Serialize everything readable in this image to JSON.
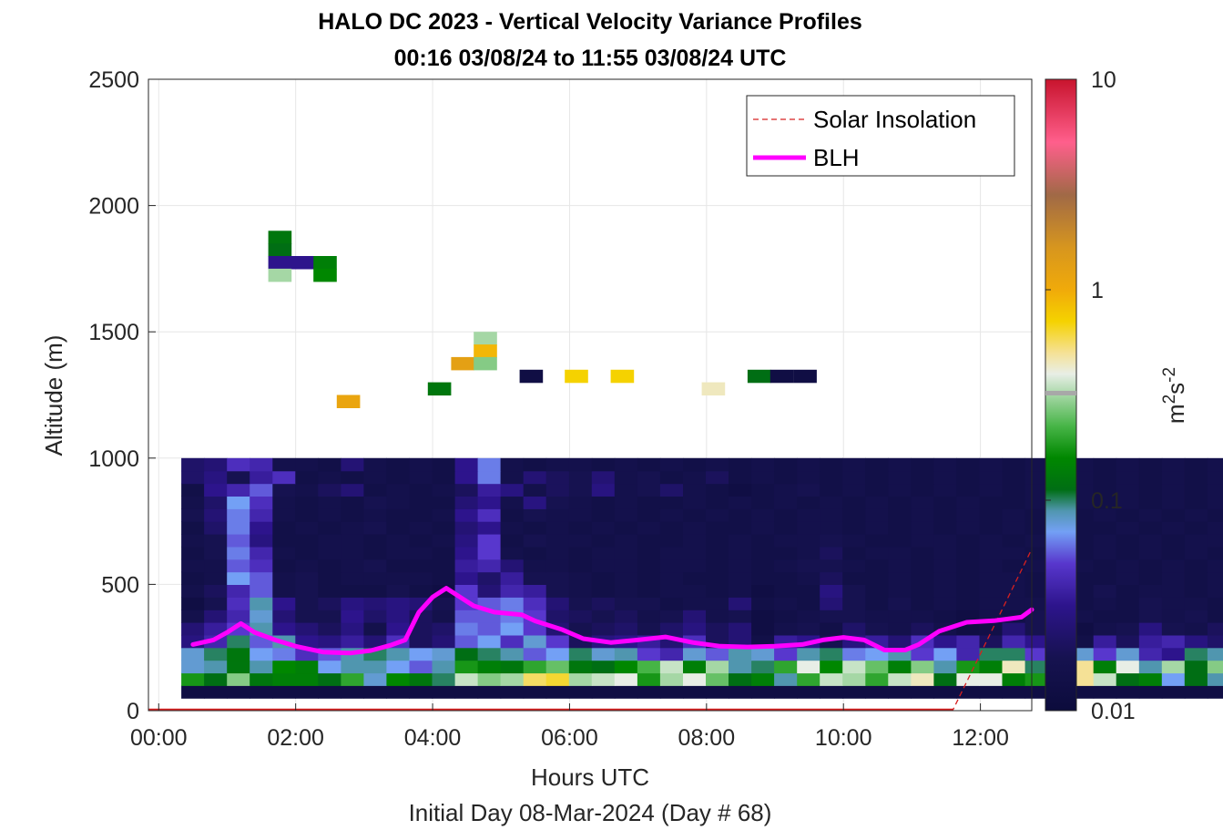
{
  "chart_data": {
    "type": "heatmap",
    "title": "HALO DC 2023 - Vertical Velocity Variance Profiles",
    "subtitle": "00:16 03/08/24 to 11:55 03/08/24  UTC",
    "xlabel": "Hours UTC",
    "xlabel2": "Initial Day 08-Mar-2024 (Day # 68)",
    "ylabel": "Altitude (m)",
    "xlim": [
      -0.15,
      12.75
    ],
    "ylim": [
      0,
      2500
    ],
    "x_ticks": [
      0,
      2,
      4,
      6,
      8,
      10,
      12
    ],
    "x_tick_labels": [
      "00:00",
      "02:00",
      "04:00",
      "06:00",
      "08:00",
      "10:00",
      "12:00"
    ],
    "y_ticks": [
      0,
      500,
      1000,
      1500,
      2000,
      2500
    ],
    "y_tick_labels": [
      "0",
      "500",
      "1000",
      "1500",
      "2000",
      "2500"
    ],
    "grid": true,
    "colorbar": {
      "label_base": "m",
      "label_sup1": "2",
      "label_mid": "s",
      "label_sup2": "-2",
      "scale": "log",
      "range": [
        0.01,
        10
      ],
      "ticks": [
        0.01,
        0.1,
        1,
        10
      ],
      "tick_labels": [
        "0.01",
        "0.1",
        "1",
        "10"
      ]
    },
    "legend": {
      "placement": "top-right",
      "entries": [
        {
          "label": "Solar Insolation",
          "color": "#d62020",
          "style": "dashed"
        },
        {
          "label": "BLH",
          "color": "#ff00ff",
          "style": "solid"
        }
      ]
    },
    "grid_cells": {
      "x_start": 0.33,
      "x_step": 0.333,
      "y_start": 50,
      "y_step": 50,
      "unit": "log10 of variance (m2 s-2)",
      "rows": [
        "-1.9,-1.9,-1.9,-1.9,-1.9,-1.9,-1.9,-1.9,-1.9,-1.9,-1.9,-1.9,-1.9,-1.9,-1.9,-1.9,-1.9,-1.9,-1.9,-1.9,-1.9,-1.9,-1.9,-1.9,-1.9,-1.9,-1.9,-1.9,-1.9,-1.9,-1.9,-1.9,-1.9,-1.9,-1.9,-1.9,-1.9,-1.9,-1.9,-1.9,-1.9,-1.9,-1.9,-1.9,-1.9,-1.9,-1.9,-1.9,-1.9,-1.9",
        "-0.75,-0.95,-0.55,-0.9,-0.85,-0.85,-0.95,-0.7,-1.1,-0.8,-0.9,-1.0,-0.45,-0.55,-0.5,-0.25,-0.2,-0.5,-0.45,-0.4,-0.75,-0.5,-0.4,-0.6,-0.95,-0.85,-1.05,-0.7,-0.45,-0.5,-0.7,-0.45,-0.35,-0.95,-0.4,-0.4,-0.85,-0.75,-0.6,-0.3,-0.45,-0.95,-0.85,-1.15,-0.95,-1.05,-0.8,-0.75,-0.55,-0.25",
        "-1.1,-1.05,-0.9,-1.05,-0.8,-0.85,-1.15,-1.05,-1.05,-1.15,-1.25,-1.05,-0.75,-0.85,-0.9,-0.7,-0.6,-0.9,-0.95,-0.8,-0.65,-0.45,-0.85,-0.5,-1.05,-1.0,-0.7,-0.4,-0.8,-0.45,-0.6,-0.85,-0.55,-1.05,-0.75,-0.85,-0.35,-1.0,-0.45,-0.3,-0.85,-0.4,-1.05,-0.5,-0.95,-0.55,-0.9,-0.75,-0.45,-0.65",
        "-1.1,-1.0,-0.9,-1.15,-1.2,-1.35,-1.25,-1.05,-1.0,-1.05,-1.15,-1.1,-0.95,-1.0,-1.05,-1.25,-1.15,-1.0,-1.1,-1.05,-1.3,-1.4,-1.1,-1.25,-1.05,-1.1,-1.3,-1.05,-1.0,-1.2,-1.15,-1.05,-1.3,-1.15,-1.4,-1.0,-1.0,-1.3,-1.15,-1.1,-1.3,-1.1,-1.4,-1.5,-1.0,-1.05,-1.35,-1.35,-1.2,-1.45",
        "-1.55,-1.4,-1.0,-1.25,-1.05,-1.5,-1.55,-1.45,-1.6,-1.35,-1.7,-1.6,-1.25,-1.15,-1.35,-1.1,-1.3,-1.7,-1.55,-1.5,-1.45,-1.6,-1.35,-1.7,-1.6,-1.85,-1.45,-1.5,-1.75,-1.55,-1.45,-1.6,-1.35,-1.5,-1.4,-1.7,-1.4,-1.5,-1.7,-1.85,-1.45,-1.7,-1.45,-1.4,-1.55,-1.65,-1.7,-1.45,-1.75,-1.6",
        "-1.6,-1.45,-1.3,-1.05,-1.5,-1.6,-1.7,-1.55,-1.8,-1.5,-1.7,-1.65,-1.2,-1.25,-1.15,-1.3,-1.6,-1.75,-1.7,-1.65,-1.75,-1.65,-1.55,-1.7,-1.6,-1.9,-1.8,-1.75,-1.85,-1.65,-1.75,-1.8,-1.7,-1.8,-1.9,-1.85,-1.6,-1.75,-1.85,-1.9,-1.8,-1.75,-1.55,-1.75,-1.8,-1.7,-1.85,-1.75,-1.9,-1.6",
        "-1.8,-1.6,-1.4,-1.1,-1.6,-1.75,-1.75,-1.5,-1.65,-1.55,-1.7,-1.8,-1.25,-1.25,-1.2,-1.3,-1.65,-1.7,-1.75,-1.7,-1.8,-1.75,-1.6,-1.8,-1.75,-1.9,-1.85,-1.8,-1.75,-1.75,-1.8,-1.8,-1.8,-1.85,-1.9,-1.8,-1.85,-1.75,-1.85,-1.8,-1.85,-1.85,-1.75,-1.8,-1.75,-1.85,-1.8,-1.8,-1.85,-1.9",
        "-1.9,-1.75,-1.35,-1.05,-1.5,-1.75,-1.7,-1.55,-1.6,-1.55,-1.6,-1.75,-1.3,-1.25,-1.2,-1.35,-1.6,-1.75,-1.7,-1.75,-1.75,-1.85,-1.8,-1.8,-1.6,-1.85,-1.8,-1.85,-1.6,-1.75,-1.85,-1.75,-1.85,-1.8,-1.85,-1.8,-1.8,-1.8,-1.8,-1.85,-1.8,-1.85,-1.75,-1.8,-1.8,-1.85,-1.8,-1.75,-1.85,-1.8",
        "-1.8,-1.7,-1.4,-1.25,-1.8,-1.75,-1.85,-1.85,-1.85,-1.75,-1.85,-1.9,-1.3,-1.6,-1.4,-1.45,-1.75,-1.8,-1.85,-1.8,-1.85,-1.8,-1.8,-1.85,-1.8,-1.9,-1.85,-1.85,-1.55,-1.75,-1.85,-1.8,-1.85,-1.8,-1.85,-1.8,-1.8,-1.85,-1.8,-1.85,-1.75,-1.85,-1.8,-1.8,-1.85,-1.8,-1.85,-1.8,-1.85,-1.8",
        "-1.85,-1.8,-1.15,-1.25,-1.8,-1.75,-1.85,-1.8,-1.8,-1.8,-1.8,-1.85,-1.5,-1.65,-1.45,-1.75,-1.75,-1.8,-1.85,-1.8,-1.85,-1.8,-1.85,-1.85,-1.8,-1.85,-1.85,-1.8,-1.7,-1.85,-1.85,-1.8,-1.85,-1.8,-1.85,-1.8,-1.8,-1.85,-1.8,-1.85,-1.85,-1.8,-1.85,-1.8,-1.85,-1.8,-1.85,-1.8,-1.85,-1.8",
        "-1.8,-1.8,-1.25,-1.35,-1.85,-1.8,-1.85,-1.8,-1.75,-1.85,-1.85,-1.85,-1.45,-1.4,-1.6,-1.8,-1.8,-1.85,-1.8,-1.8,-1.85,-1.8,-1.8,-1.85,-1.8,-1.85,-1.8,-1.75,-1.75,-1.8,-1.85,-1.8,-1.85,-1.8,-1.85,-1.8,-1.85,-1.8,-1.85,-1.8,-1.85,-1.8,-1.85,-1.8,-1.85,-1.8,-1.85,-1.8,-1.85,-1.8",
        "-1.85,-1.75,-1.2,-1.4,-1.8,-1.85,-1.8,-1.8,-1.85,-1.8,-1.8,-1.85,-1.5,-1.3,-1.8,-1.85,-1.8,-1.85,-1.8,-1.8,-1.85,-1.8,-1.8,-1.85,-1.8,-1.85,-1.85,-1.8,-1.7,-1.85,-1.8,-1.8,-1.85,-1.8,-1.85,-1.8,-1.8,-1.85,-1.8,-1.85,-1.8,-1.85,-1.8,-1.85,-1.8,-1.85,-1.8,-1.85,-1.8,-1.85",
        "-1.8,-1.75,-1.25,-1.55,-1.85,-1.85,-1.8,-1.8,-1.85,-1.8,-1.85,-1.8,-1.55,-1.3,-1.85,-1.75,-1.8,-1.8,-1.85,-1.8,-1.85,-1.85,-1.8,-1.85,-1.8,-1.85,-1.8,-1.8,-1.75,-1.8,-1.85,-1.85,-1.8,-1.8,-1.85,-1.8,-1.85,-1.8,-1.8,-1.85,-1.8,-1.85,-1.8,-1.85,-1.8,-1.8,-1.85,-1.8,-1.85,-1.8",
        "-1.85,-1.65,-1.2,-1.5,-1.85,-1.8,-1.85,-1.8,-1.75,-1.85,-1.8,-1.85,-1.6,-1.5,-1.8,-1.85,-1.8,-1.85,-1.8,-1.85,-1.8,-1.85,-1.8,-1.85,-1.85,-1.8,-1.85,-1.8,-1.8,-1.85,-1.8,-1.85,-1.8,-1.85,-1.8,-1.85,-1.8,-1.85,-1.8,-1.85,-1.85,-1.8,-1.85,-1.8,-1.85,-1.8,-1.85,-1.8,-1.8,-1.85",
        "-1.75,-1.6,-1.2,-1.4,-1.8,-1.85,-1.8,-1.85,-1.8,-1.85,-1.85,-1.8,-1.5,-1.35,-1.85,-1.75,-1.8,-1.8,-1.85,-1.8,-1.85,-1.8,-1.85,-1.8,-1.85,-1.8,-1.85,-1.8,-1.8,-1.85,-1.8,-1.85,-1.8,-1.85,-1.8,-1.85,-1.8,-1.85,-1.8,-1.85,-1.8,-1.85,-1.8,-1.85,-1.8,-1.85,-1.8,-1.85,-1.8,-1.85",
        "-1.8,-1.65,-1.15,-1.35,-1.8,-1.85,-1.8,-1.85,-1.75,-1.8,-1.85,-1.85,-1.6,-1.5,-1.8,-1.55,-1.75,-1.8,-1.85,-1.8,-1.85,-1.85,-1.8,-1.85,-1.8,-1.85,-1.8,-1.85,-1.8,-1.85,-1.8,-1.85,-1.8,-1.85,-1.8,-1.85,-1.85,-1.8,-1.85,-1.8,-1.85,-1.8,-1.85,-1.8,-1.85,-1.8,-1.85,-1.8,-1.85,-1.8",
        "-1.85,-1.5,-1.4,-1.25,-1.75,-1.8,-1.7,-1.6,-1.85,-1.8,-1.85,-1.8,-1.7,-1.45,-1.55,-1.8,-1.7,-1.75,-1.55,-1.8,-1.75,-1.65,-1.8,-1.85,-1.9,-1.85,-1.8,-1.75,-1.85,-1.8,-1.85,-1.8,-1.85,-1.8,-1.85,-1.8,-1.85,-1.8,-1.85,-1.8,-1.85,-1.8,-1.85,-1.8,-1.85,-1.8,-1.85,-1.8,-1.85,-1.8",
        "-1.65,-1.55,-1.75,-1.45,-1.35,-1.85,-1.8,-1.85,-1.8,-1.85,-1.8,-1.85,-1.5,-1.2,-1.8,-1.6,-1.7,-1.75,-1.6,-1.8,-1.75,-1.85,-1.8,-1.7,-1.85,-1.8,-1.85,-1.8,-1.85,-1.8,-1.85,-1.8,-1.85,-1.8,-1.85,-1.8,-1.85,-1.8,-1.85,-1.8,-1.85,-1.8,-1.85,-1.8,-1.85,-1.8,-1.85,-1.8,-1.85,-1.8",
        "-1.65,-1.6,-1.35,-1.4,-1.8,-1.8,-1.85,-1.6,-1.8,-1.85,-1.8,-1.85,-1.5,-1.2,-1.8,-1.85,-1.8,-1.8,-1.85,-1.8,-1.85,-1.8,-1.85,-1.8,-1.85,-1.8,-1.85,-1.8,-1.85,-1.8,-1.85,-1.8,-1.85,-1.8,-1.85,-1.8,-1.85,-1.8,-1.85,-1.8,-1.85,-1.8,-1.85,-1.8,-1.85,-1.8,-1.85,-1.8,-1.85,-1.8"
      ]
    }
  }
}
